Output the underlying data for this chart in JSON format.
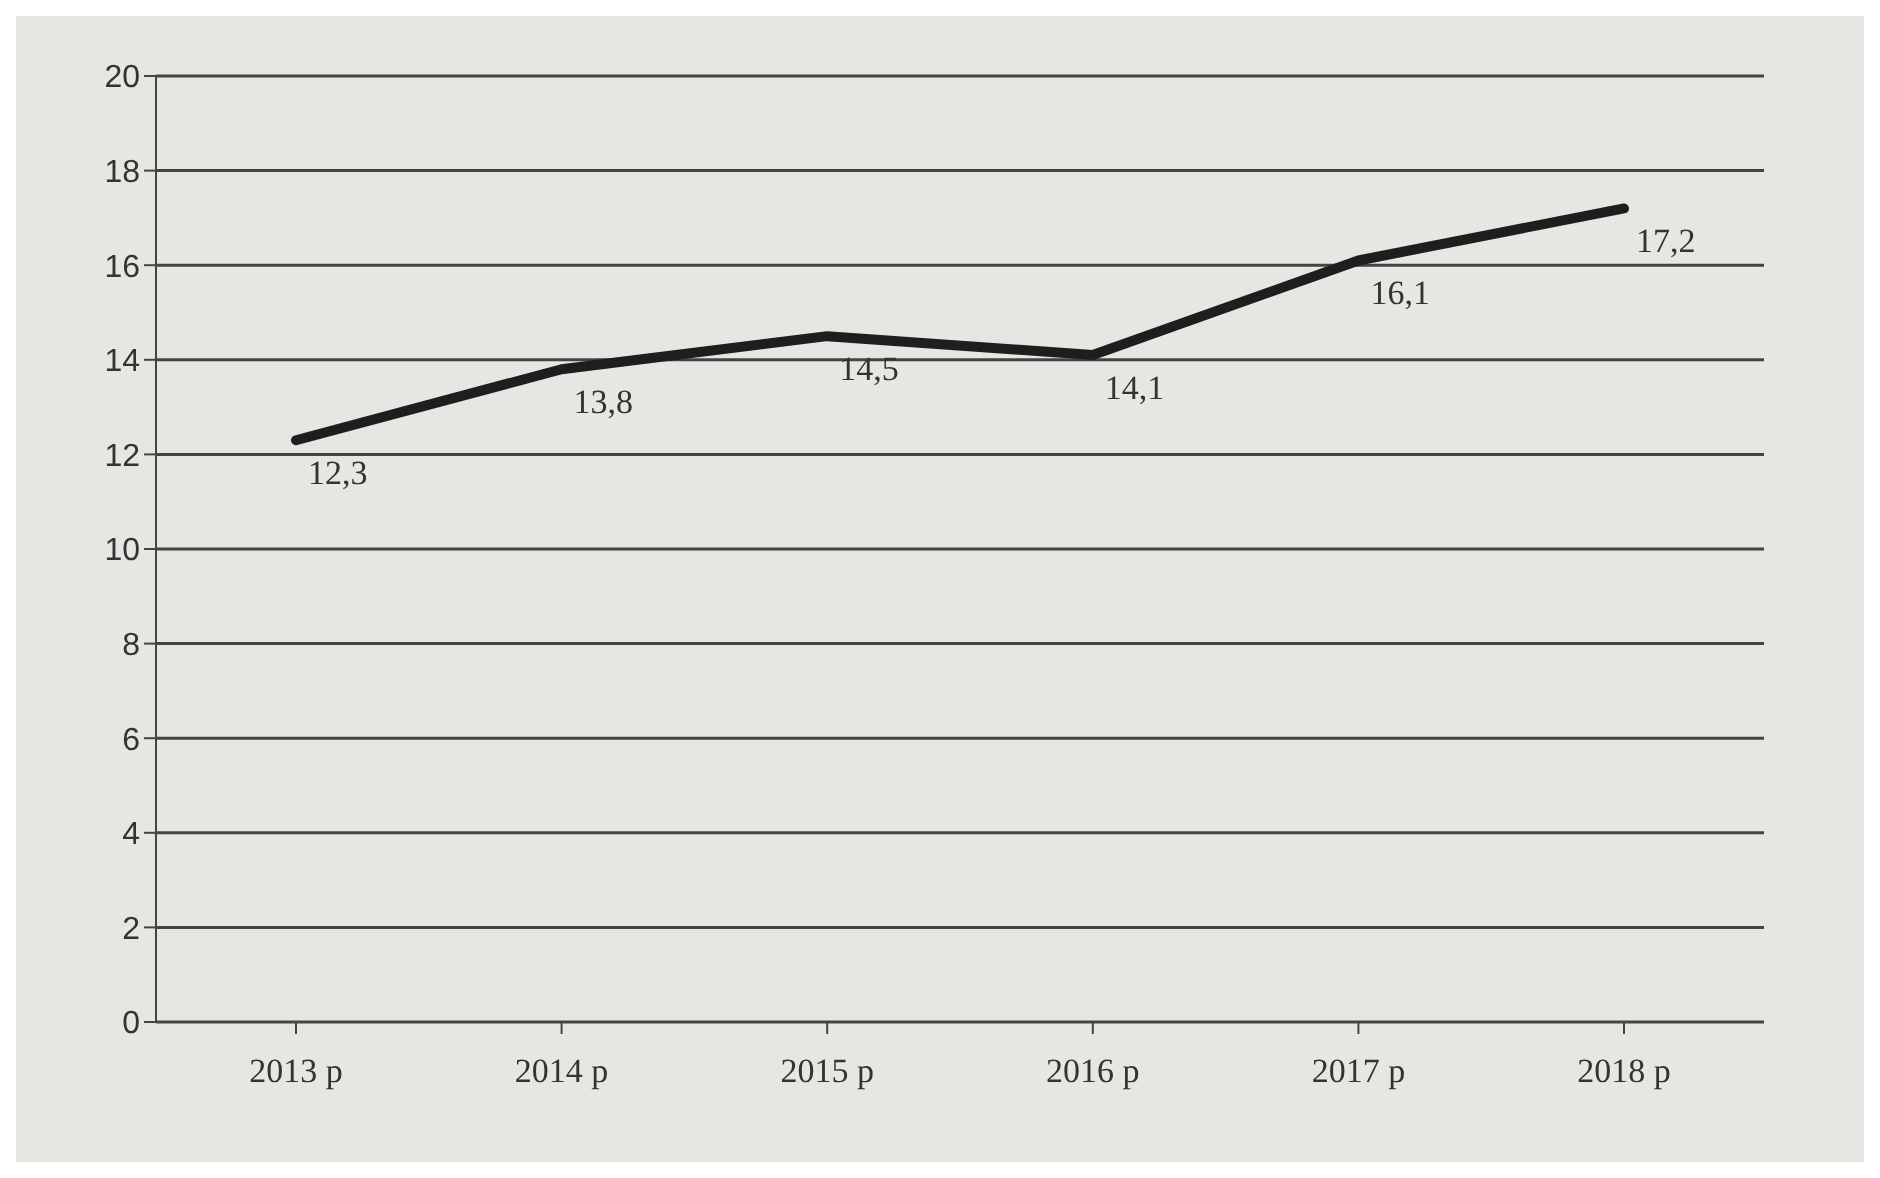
{
  "chart_data": {
    "type": "line",
    "categories": [
      "2013 р",
      "2014 р",
      "2015 р",
      "2016 р",
      "2017 р",
      "2018 р"
    ],
    "series": [
      {
        "color": "#1e1e1e",
        "values": [
          12.3,
          13.8,
          14.5,
          14.1,
          16.1,
          17.2
        ],
        "value_labels": [
          "12,3",
          "13,8",
          "14,5",
          "14,1",
          "16,1",
          "17,2"
        ]
      }
    ],
    "ylim": [
      0,
      20
    ],
    "yticks": [
      0,
      2,
      4,
      6,
      8,
      10,
      12,
      14,
      16,
      18,
      20
    ],
    "grid": "y",
    "legend": false,
    "marker": "none",
    "line_style": "solid"
  }
}
